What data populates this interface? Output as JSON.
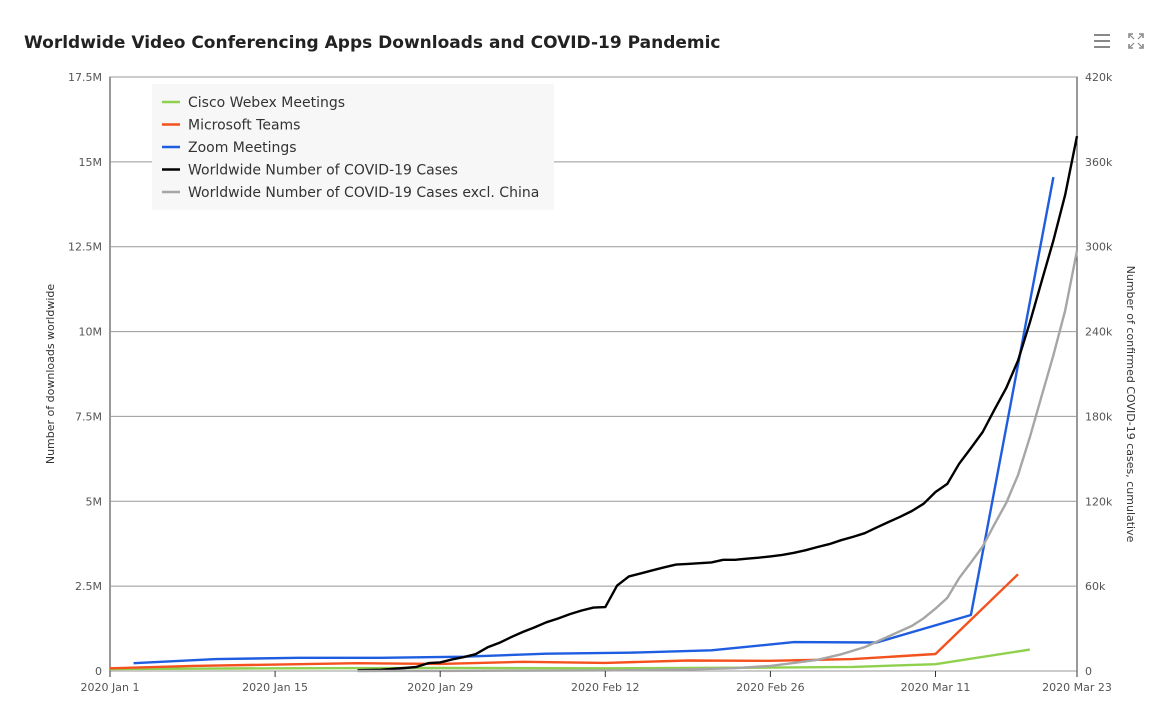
{
  "title": "Worldwide Video Conferencing Apps Downloads and COVID-19 Pandemic",
  "toolbar": {
    "menu_icon": "hamburger-menu-icon",
    "expand_icon": "expand-icon"
  },
  "chart_data": {
    "type": "line",
    "title": "Worldwide Video Conferencing Apps Downloads and COVID-19 Pandemic",
    "x_axis": {
      "type": "date",
      "range": [
        "2020-01-01",
        "2020-03-23"
      ],
      "ticks": [
        {
          "date": "2020-01-01",
          "label": "2020 Jan 1"
        },
        {
          "date": "2020-01-15",
          "label": "2020 Jan 15"
        },
        {
          "date": "2020-01-29",
          "label": "2020 Jan 29"
        },
        {
          "date": "2020-02-12",
          "label": "2020 Feb 12"
        },
        {
          "date": "2020-02-26",
          "label": "2020 Feb 26"
        },
        {
          "date": "2020-03-11",
          "label": "2020 Mar 11"
        },
        {
          "date": "2020-03-23",
          "label": "2020 Mar 23"
        }
      ]
    },
    "y_left": {
      "label": "Number of downloads worldwide",
      "range": [
        0,
        17500000
      ],
      "ticks": [
        {
          "value": 0,
          "label": "0"
        },
        {
          "value": 2500000,
          "label": "2.5M"
        },
        {
          "value": 5000000,
          "label": "5M"
        },
        {
          "value": 7500000,
          "label": "7.5M"
        },
        {
          "value": 10000000,
          "label": "10M"
        },
        {
          "value": 12500000,
          "label": "12.5M"
        },
        {
          "value": 15000000,
          "label": "15M"
        },
        {
          "value": 17500000,
          "label": "17.5M"
        }
      ]
    },
    "y_right": {
      "label": "Number of confirmed COVID-19 cases, cumulative",
      "range": [
        0,
        420000
      ],
      "ticks": [
        {
          "value": 0,
          "label": "0"
        },
        {
          "value": 60000,
          "label": "60k"
        },
        {
          "value": 120000,
          "label": "120k"
        },
        {
          "value": 180000,
          "label": "180k"
        },
        {
          "value": 240000,
          "label": "240k"
        },
        {
          "value": 300000,
          "label": "300k"
        },
        {
          "value": 360000,
          "label": "360k"
        },
        {
          "value": 420000,
          "label": "420k"
        }
      ]
    },
    "grid": true,
    "legend_position": "top-left",
    "series": [
      {
        "name": "Cisco Webex Meetings",
        "color": "#8fd14f",
        "axis": "left",
        "points": [
          [
            "2020-01-01",
            60000
          ],
          [
            "2020-01-15",
            80000
          ],
          [
            "2020-01-29",
            90000
          ],
          [
            "2020-02-12",
            80000
          ],
          [
            "2020-02-26",
            100000
          ],
          [
            "2020-03-04",
            120000
          ],
          [
            "2020-03-11",
            200000
          ],
          [
            "2020-03-19",
            630000
          ]
        ]
      },
      {
        "name": "Microsoft Teams",
        "color": "#f4511e",
        "axis": "left",
        "points": [
          [
            "2020-01-01",
            80000
          ],
          [
            "2020-01-08",
            150000
          ],
          [
            "2020-01-22",
            230000
          ],
          [
            "2020-01-29",
            210000
          ],
          [
            "2020-02-05",
            270000
          ],
          [
            "2020-02-12",
            240000
          ],
          [
            "2020-02-19",
            310000
          ],
          [
            "2020-02-26",
            300000
          ],
          [
            "2020-03-04",
            350000
          ],
          [
            "2020-03-11",
            500000
          ],
          [
            "2020-03-18",
            2850000
          ]
        ]
      },
      {
        "name": "Zoom Meetings",
        "color": "#1e5ddf",
        "axis": "left",
        "points": [
          [
            "2020-01-03",
            230000
          ],
          [
            "2020-01-10",
            350000
          ],
          [
            "2020-01-17",
            390000
          ],
          [
            "2020-01-24",
            390000
          ],
          [
            "2020-01-31",
            420000
          ],
          [
            "2020-02-07",
            510000
          ],
          [
            "2020-02-14",
            540000
          ],
          [
            "2020-02-21",
            610000
          ],
          [
            "2020-02-28",
            850000
          ],
          [
            "2020-03-06",
            840000
          ],
          [
            "2020-03-14",
            1650000
          ],
          [
            "2020-03-21",
            14550000
          ]
        ]
      },
      {
        "name": "Worldwide Number of COVID-19 Cases",
        "color": "#000000",
        "axis": "right",
        "points": [
          [
            "2020-01-22",
            580
          ],
          [
            "2020-01-24",
            900
          ],
          [
            "2020-01-26",
            2100
          ],
          [
            "2020-01-27",
            2900
          ],
          [
            "2020-01-28",
            5600
          ],
          [
            "2020-01-29",
            6100
          ],
          [
            "2020-01-30",
            8200
          ],
          [
            "2020-01-31",
            9800
          ],
          [
            "2020-02-01",
            11900
          ],
          [
            "2020-02-02",
            16700
          ],
          [
            "2020-02-03",
            19900
          ],
          [
            "2020-02-04",
            23900
          ],
          [
            "2020-02-05",
            27600
          ],
          [
            "2020-02-06",
            30800
          ],
          [
            "2020-02-07",
            34400
          ],
          [
            "2020-02-08",
            37100
          ],
          [
            "2020-02-09",
            40200
          ],
          [
            "2020-02-10",
            42800
          ],
          [
            "2020-02-11",
            44800
          ],
          [
            "2020-02-12",
            45200
          ],
          [
            "2020-02-13",
            60400
          ],
          [
            "2020-02-14",
            66900
          ],
          [
            "2020-02-15",
            69000
          ],
          [
            "2020-02-16",
            71200
          ],
          [
            "2020-02-17",
            73300
          ],
          [
            "2020-02-18",
            75200
          ],
          [
            "2020-02-19",
            75700
          ],
          [
            "2020-02-20",
            76200
          ],
          [
            "2020-02-21",
            76800
          ],
          [
            "2020-02-22",
            78600
          ],
          [
            "2020-02-23",
            78600
          ],
          [
            "2020-02-24",
            79400
          ],
          [
            "2020-02-25",
            80100
          ],
          [
            "2020-02-26",
            81000
          ],
          [
            "2020-02-27",
            82100
          ],
          [
            "2020-02-28",
            83600
          ],
          [
            "2020-02-29",
            85400
          ],
          [
            "2020-03-01",
            87700
          ],
          [
            "2020-03-02",
            89700
          ],
          [
            "2020-03-03",
            92500
          ],
          [
            "2020-03-04",
            94800
          ],
          [
            "2020-03-05",
            97400
          ],
          [
            "2020-03-06",
            101400
          ],
          [
            "2020-03-07",
            105300
          ],
          [
            "2020-03-08",
            109000
          ],
          [
            "2020-03-09",
            113100
          ],
          [
            "2020-03-10",
            118300
          ],
          [
            "2020-03-11",
            126600
          ],
          [
            "2020-03-12",
            132300
          ],
          [
            "2020-03-13",
            146500
          ],
          [
            "2020-03-14",
            157600
          ],
          [
            "2020-03-15",
            169000
          ],
          [
            "2020-03-16",
            184800
          ],
          [
            "2020-03-17",
            200000
          ],
          [
            "2020-03-18",
            219500
          ],
          [
            "2020-03-19",
            246300
          ],
          [
            "2020-03-20",
            275500
          ],
          [
            "2020-03-21",
            304400
          ],
          [
            "2020-03-22",
            336800
          ],
          [
            "2020-03-23",
            378200
          ]
        ]
      },
      {
        "name": "Worldwide Number of COVID-19 Cases excl. China",
        "color": "#a6a6a6",
        "axis": "right",
        "points": [
          [
            "2020-01-22",
            10
          ],
          [
            "2020-01-29",
            70
          ],
          [
            "2020-02-05",
            200
          ],
          [
            "2020-02-12",
            450
          ],
          [
            "2020-02-19",
            1100
          ],
          [
            "2020-02-23",
            2000
          ],
          [
            "2020-02-26",
            3600
          ],
          [
            "2020-02-28",
            5700
          ],
          [
            "2020-03-01",
            7900
          ],
          [
            "2020-03-03",
            11800
          ],
          [
            "2020-03-05",
            16900
          ],
          [
            "2020-03-07",
            24400
          ],
          [
            "2020-03-09",
            31900
          ],
          [
            "2020-03-10",
            37300
          ],
          [
            "2020-03-11",
            44100
          ],
          [
            "2020-03-12",
            51700
          ],
          [
            "2020-03-13",
            65600
          ],
          [
            "2020-03-14",
            76700
          ],
          [
            "2020-03-15",
            88000
          ],
          [
            "2020-03-16",
            103800
          ],
          [
            "2020-03-17",
            118800
          ],
          [
            "2020-03-18",
            138500
          ],
          [
            "2020-03-19",
            165200
          ],
          [
            "2020-03-20",
            194400
          ],
          [
            "2020-03-21",
            223300
          ],
          [
            "2020-03-22",
            255000
          ],
          [
            "2020-03-23",
            297200
          ]
        ]
      }
    ]
  }
}
